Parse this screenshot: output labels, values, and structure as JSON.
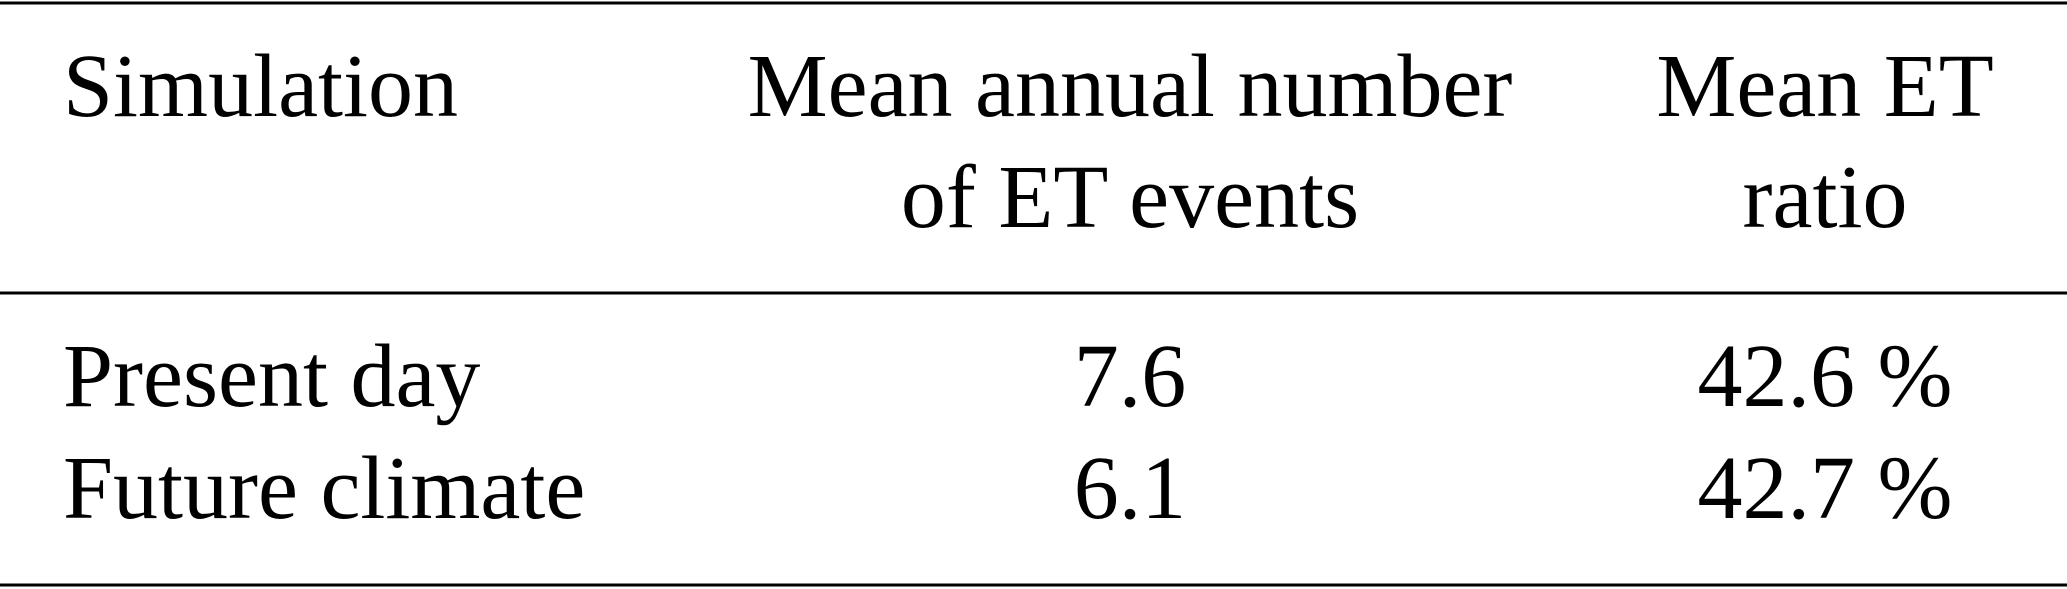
{
  "table": {
    "header": [
      [
        "Simulation"
      ],
      [
        "Mean annual number",
        "of ET events"
      ],
      [
        "Mean ET",
        "ratio"
      ]
    ],
    "rows": [
      [
        "Present day",
        "7.6",
        "42.6 %"
      ],
      [
        "Future climate",
        "6.1",
        "42.7 %"
      ]
    ]
  }
}
